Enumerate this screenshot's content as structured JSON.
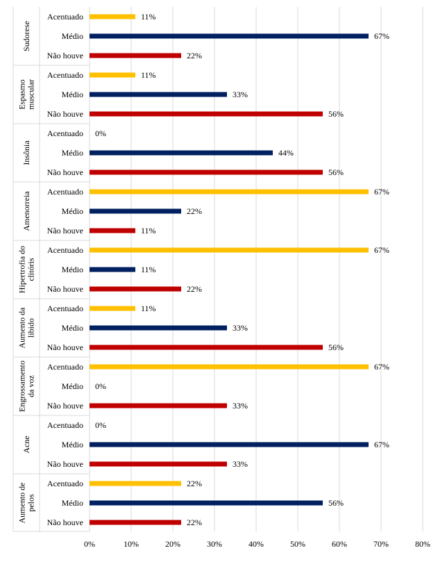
{
  "chart_data": {
    "type": "bar",
    "orientation": "horizontal",
    "title": "",
    "xlabel": "",
    "ylabel": "",
    "xlim": [
      0,
      80
    ],
    "x_ticks": [
      "0%",
      "10%",
      "20%",
      "30%",
      "40%",
      "50%",
      "60%",
      "70%",
      "80%"
    ],
    "grid": true,
    "legend": "none",
    "value_suffix": "%",
    "levels": [
      "Acentuado",
      "Médio",
      "Não houve"
    ],
    "colors": {
      "Acentuado": "#FFC000",
      "Médio": "#002060",
      "Não houve": "#C00000"
    },
    "groups": [
      {
        "name": "Sudorese",
        "values": [
          11,
          67,
          22
        ]
      },
      {
        "name": "Espasmo muscular",
        "values": [
          11,
          33,
          56
        ]
      },
      {
        "name": "Insônia",
        "values": [
          0,
          44,
          56
        ]
      },
      {
        "name": "Amenorreia",
        "values": [
          67,
          22,
          11
        ]
      },
      {
        "name": "Hipertrofia do clitóris",
        "values": [
          67,
          11,
          22
        ]
      },
      {
        "name": "Aumento da libido",
        "values": [
          11,
          33,
          56
        ]
      },
      {
        "name": "Engrossamento da voz",
        "values": [
          67,
          0,
          33
        ]
      },
      {
        "name": "Acne",
        "values": [
          0,
          67,
          33
        ]
      },
      {
        "name": "Aumento de pelos",
        "values": [
          22,
          56,
          22
        ]
      }
    ]
  }
}
